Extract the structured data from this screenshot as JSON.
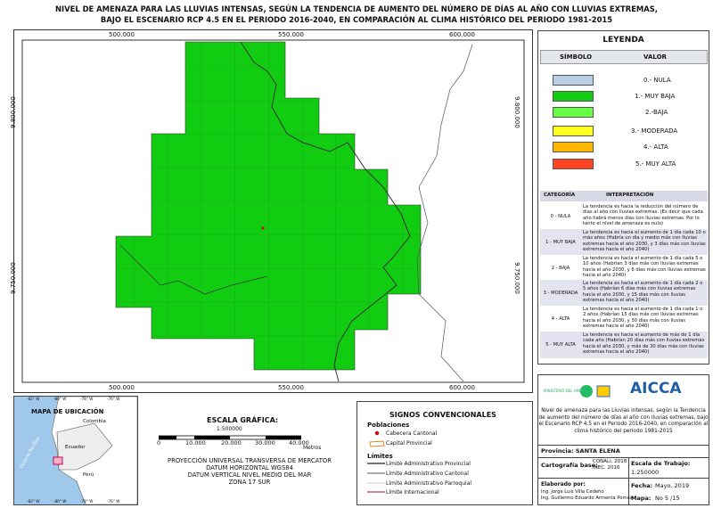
{
  "header": {
    "title_lines": [
      "NIVEL DE AMENAZA PARA LAS LLUVIAS INTENSAS, SEGÚN LA TENDENCIA DE AUMENTO DEL NÚMERO DE DÍAS AL AÑO CON LLUVIAS EXTREMAS,",
      "BAJO EL ESCENARIO RCP 4.5 EN EL PERIODO 2016-2040, EN COMPARACIÓN AL CLIMA HISTÓRICO DEL PERIODO 1981-2015"
    ]
  },
  "map": {
    "x_labels": [
      "500.000",
      "550.000",
      "600.000"
    ],
    "y_labels": [
      "9.800.000",
      "9.750.000"
    ]
  },
  "legend": {
    "title": "LEYENDA",
    "headers": [
      "SÍMBOLO",
      "VALOR"
    ],
    "items": [
      "0.- NULA",
      "1.- MUY BAJA",
      "2.-BAJA",
      "3.- MODERADA",
      "4.- ALTA",
      "5.- MUY ALTA"
    ]
  },
  "interpretation": {
    "headers": [
      "CATEGORÍA",
      "INTERPRETACIÓN"
    ],
    "rows": [
      [
        "0 - NULA",
        "La tendencia es hacia la reducción del número de días al año con lluvias extremas. (Es decir que cada año habrá menos días con lluvias extremas. Por lo tanto el nivel de amenaza es nulo)"
      ],
      [
        "1 - MUY BAJA",
        "La tendencia es hacia el aumento de 1 día cada 10 o más años (Habría un día y medio más con lluvias extremas hacia el año 2030, y 3 días más con lluvias extremas hacia el año 2040)"
      ],
      [
        "2 - BAJA",
        "La tendencia es hacia el aumento de 1 día cada 5 o 10 años (Habrían 3 días más con lluvias extremas hacia el año 2030, y 6 días más con lluvias extremas hacia el año 2040)"
      ],
      [
        "3 - MODERADA",
        "La tendencia es hacia el aumento de 1 día cada 2 o 5 años (Habrían 6 días más con lluvias extremas hacia el año 2030, y 15 días más con lluvias extremas hacia el año 2040)"
      ],
      [
        "4 - ALTA",
        "La tendencia es hacia el aumento de 1 día cada 1 o 2 años (Habrían 15 días más con lluvias extremas hacia el año 2030, y 30 días más con lluvias extremas hacia el año 2040)"
      ],
      [
        "5 - MUY ALTA",
        "La tendencia es hacia el aumento de más de 1 día cada año (Habrían 20 días más con lluvias extremas hacia el año 2030, y más de 30 días más con lluvias extremas hacia el año 2040)"
      ]
    ]
  },
  "info": {
    "ministry": "MINISTERIO DEL AMBIENTE",
    "logo": "AICCA",
    "description": "Nivel de amenaza para las Lluvias intensas, según la Tendencia de aumento del número de días al año con lluvias extremas, bajo el Escenario RCP 4.5 en el Periodo 2016-2040, en comparación al clima histórico del periodo 1981-2015",
    "province": "Provincia: SANTA ELENA",
    "base_label": "Cartografía base:",
    "base_value": "CONALI, 2018 INEC. 2016",
    "scale_label": "Escala de Trabajo:",
    "scale_value": "1:250000",
    "author_label": "Elaborado por:",
    "authors": [
      "Ing. Jorge Luis Villa Cedeño",
      "Ing. Guillermo Eduardo Armenta Pomas"
    ],
    "date_label": "Fecha:",
    "date_value": "Mayo, 2019",
    "map_label": "Mapa:",
    "map_value": "No 5 /15"
  },
  "location": {
    "title": "MAPA DE UBICACIÓN",
    "countries": [
      "Colombia",
      "Ecuador",
      "Perú"
    ],
    "ocean": "Océano Pacífico",
    "lon_labels": [
      "-82° W",
      "-80° W",
      "-78° W",
      "-76° W"
    ]
  },
  "scale": {
    "title": "ESCALA GRÁFICA:",
    "ratio": "1:500000",
    "ticks": [
      "0",
      "10.000",
      "20.000",
      "30.000",
      "40.000"
    ],
    "unit": "Metros",
    "projection": [
      "PROYECCIÓN UNIVERSAL TRANSVERSA DE MERCATOR",
      "DATUM HORIZONTAL WGS84",
      "DATUM VERTICAL NIVEL MEDIO DEL MAR",
      "ZONA 17 SUR"
    ]
  },
  "signs": {
    "title": "SIGNOS CONVENCIONALES",
    "populations": "Poblaciones",
    "population_items": [
      "Cabecera Cantonal",
      "Capital Provincial"
    ],
    "limits": "Límites",
    "limit_items": [
      "Límite Administrativo Provincial",
      "Límite Administrativo Cantonal",
      "Límite Administrativo Parroquial",
      "Límite Internacional"
    ]
  }
}
